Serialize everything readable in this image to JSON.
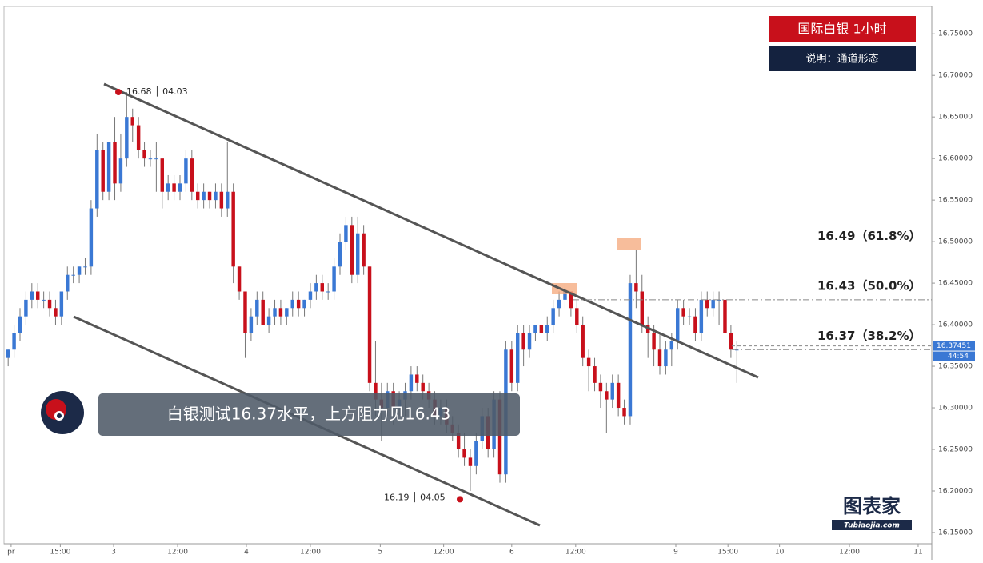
{
  "chart_data": {
    "type": "candlestick",
    "title": "国际白银  1小时",
    "subtitle": "说明：通道形态",
    "headline": "白银测试16.37水平，上方阻力见16.43",
    "logo": {
      "name": "图表家",
      "site": "Tubiaojia.com"
    },
    "up_color": "#3a78d4",
    "down_color": "#c8101b",
    "ylim": [
      16.1365,
      16.781
    ],
    "xlim": [
      -0.7,
      155.9
    ],
    "yticks": [
      {
        "value": 16.15,
        "label": "16.15000"
      },
      {
        "value": 16.2,
        "label": "16.20000"
      },
      {
        "value": 16.25,
        "label": "16.25000"
      },
      {
        "value": 16.3,
        "label": "16.30000"
      },
      {
        "value": 16.35,
        "label": "16.35000"
      },
      {
        "value": 16.4,
        "label": "16.40000"
      },
      {
        "value": 16.45,
        "label": "16.45000"
      },
      {
        "value": 16.5,
        "label": "16.50000"
      },
      {
        "value": 16.55,
        "label": "16.55000"
      },
      {
        "value": 16.6,
        "label": "16.60000"
      },
      {
        "value": 16.65,
        "label": "16.65000"
      },
      {
        "value": 16.7,
        "label": "16.70000"
      },
      {
        "value": 16.75,
        "label": "16.75000"
      }
    ],
    "xticks": [
      {
        "value": 0.5,
        "label": "pr"
      },
      {
        "value": 8.8,
        "label": "15:00"
      },
      {
        "value": 17.8,
        "label": "3"
      },
      {
        "value": 28.6,
        "label": "12:00"
      },
      {
        "value": 40.2,
        "label": "4"
      },
      {
        "value": 51,
        "label": "12:00"
      },
      {
        "value": 62.8,
        "label": "5"
      },
      {
        "value": 73.5,
        "label": "12:00"
      },
      {
        "value": 85,
        "label": "6"
      },
      {
        "value": 95.8,
        "label": "12:00"
      },
      {
        "value": 112.7,
        "label": "9"
      },
      {
        "value": 121.5,
        "label": "15:00"
      },
      {
        "value": 130.2,
        "label": "10"
      },
      {
        "value": 142,
        "label": "12:00"
      },
      {
        "value": 153.6,
        "label": "11"
      }
    ],
    "ohlc": [
      [
        16.36,
        16.37,
        16.35,
        16.37
      ],
      [
        16.37,
        16.4,
        16.36,
        16.39
      ],
      [
        16.39,
        16.42,
        16.38,
        16.41
      ],
      [
        16.41,
        16.44,
        16.4,
        16.43
      ],
      [
        16.43,
        16.45,
        16.42,
        16.44
      ],
      [
        16.44,
        16.45,
        16.42,
        16.43
      ],
      [
        16.43,
        16.44,
        16.42,
        16.43
      ],
      [
        16.43,
        16.44,
        16.41,
        16.42
      ],
      [
        16.42,
        16.43,
        16.4,
        16.41
      ],
      [
        16.41,
        16.44,
        16.4,
        16.44
      ],
      [
        16.44,
        16.47,
        16.43,
        16.46
      ],
      [
        16.46,
        16.47,
        16.45,
        16.46
      ],
      [
        16.46,
        16.47,
        16.45,
        16.47
      ],
      [
        16.47,
        16.48,
        16.46,
        16.47
      ],
      [
        16.47,
        16.55,
        16.46,
        16.54
      ],
      [
        16.54,
        16.63,
        16.53,
        16.61
      ],
      [
        16.61,
        16.62,
        16.55,
        16.56
      ],
      [
        16.56,
        16.62,
        16.55,
        16.62
      ],
      [
        16.62,
        16.65,
        16.55,
        16.57
      ],
      [
        16.57,
        16.63,
        16.56,
        16.6
      ],
      [
        16.6,
        16.68,
        16.59,
        16.65
      ],
      [
        16.65,
        16.66,
        16.62,
        16.64
      ],
      [
        16.64,
        16.65,
        16.6,
        16.61
      ],
      [
        16.61,
        16.62,
        16.59,
        16.6
      ],
      [
        16.6,
        16.61,
        16.59,
        16.6
      ],
      [
        16.6,
        16.62,
        16.56,
        16.6
      ],
      [
        16.6,
        16.6,
        16.54,
        16.56
      ],
      [
        16.56,
        16.58,
        16.55,
        16.57
      ],
      [
        16.57,
        16.58,
        16.55,
        16.56
      ],
      [
        16.56,
        16.58,
        16.55,
        16.57
      ],
      [
        16.57,
        16.61,
        16.56,
        16.6
      ],
      [
        16.6,
        16.61,
        16.55,
        16.56
      ],
      [
        16.56,
        16.57,
        16.54,
        16.55
      ],
      [
        16.55,
        16.57,
        16.54,
        16.56
      ],
      [
        16.56,
        16.56,
        16.54,
        16.55
      ],
      [
        16.55,
        16.57,
        16.54,
        16.56
      ],
      [
        16.56,
        16.57,
        16.53,
        16.54
      ],
      [
        16.54,
        16.62,
        16.53,
        16.56
      ],
      [
        16.56,
        16.57,
        16.45,
        16.47
      ],
      [
        16.47,
        16.47,
        16.43,
        16.44
      ],
      [
        16.44,
        16.44,
        16.36,
        16.39
      ],
      [
        16.39,
        16.42,
        16.38,
        16.41
      ],
      [
        16.41,
        16.44,
        16.4,
        16.43
      ],
      [
        16.43,
        16.44,
        16.4,
        16.4
      ],
      [
        16.4,
        16.42,
        16.39,
        16.41
      ],
      [
        16.41,
        16.43,
        16.4,
        16.42
      ],
      [
        16.42,
        16.43,
        16.4,
        16.41
      ],
      [
        16.41,
        16.42,
        16.4,
        16.42
      ],
      [
        16.42,
        16.44,
        16.41,
        16.43
      ],
      [
        16.43,
        16.44,
        16.41,
        16.42
      ],
      [
        16.42,
        16.43,
        16.41,
        16.43
      ],
      [
        16.43,
        16.45,
        16.42,
        16.44
      ],
      [
        16.44,
        16.46,
        16.43,
        16.45
      ],
      [
        16.45,
        16.46,
        16.43,
        16.44
      ],
      [
        16.44,
        16.45,
        16.43,
        16.44
      ],
      [
        16.44,
        16.48,
        16.43,
        16.47
      ],
      [
        16.47,
        16.51,
        16.46,
        16.5
      ],
      [
        16.5,
        16.53,
        16.49,
        16.52
      ],
      [
        16.52,
        16.53,
        16.45,
        16.46
      ],
      [
        16.46,
        16.53,
        16.45,
        16.51
      ],
      [
        16.51,
        16.52,
        16.46,
        16.47
      ],
      [
        16.47,
        16.47,
        16.32,
        16.33
      ],
      [
        16.33,
        16.38,
        16.29,
        16.31
      ],
      [
        16.31,
        16.33,
        16.26,
        16.3
      ],
      [
        16.3,
        16.33,
        16.29,
        16.32
      ],
      [
        16.32,
        16.33,
        16.28,
        16.3
      ],
      [
        16.3,
        16.32,
        16.29,
        16.31
      ],
      [
        16.31,
        16.33,
        16.29,
        16.32
      ],
      [
        16.32,
        16.35,
        16.31,
        16.34
      ],
      [
        16.34,
        16.35,
        16.32,
        16.33
      ],
      [
        16.33,
        16.34,
        16.31,
        16.32
      ],
      [
        16.32,
        16.33,
        16.3,
        16.31
      ],
      [
        16.31,
        16.32,
        16.28,
        16.29
      ],
      [
        16.29,
        16.31,
        16.28,
        16.3
      ],
      [
        16.3,
        16.31,
        16.27,
        16.28
      ],
      [
        16.28,
        16.29,
        16.26,
        16.27
      ],
      [
        16.27,
        16.28,
        16.24,
        16.25
      ],
      [
        16.25,
        16.27,
        16.23,
        16.24
      ],
      [
        16.24,
        16.25,
        16.2,
        16.23
      ],
      [
        16.23,
        16.27,
        16.22,
        16.26
      ],
      [
        16.26,
        16.3,
        16.25,
        16.29
      ],
      [
        16.29,
        16.3,
        16.24,
        16.25
      ],
      [
        16.25,
        16.32,
        16.24,
        16.31
      ],
      [
        16.31,
        16.32,
        16.21,
        16.22
      ],
      [
        16.22,
        16.38,
        16.21,
        16.37
      ],
      [
        16.37,
        16.38,
        16.32,
        16.33
      ],
      [
        16.33,
        16.4,
        16.32,
        16.39
      ],
      [
        16.39,
        16.4,
        16.35,
        16.37
      ],
      [
        16.37,
        16.4,
        16.36,
        16.39
      ],
      [
        16.39,
        16.4,
        16.38,
        16.4
      ],
      [
        16.4,
        16.4,
        16.39,
        16.39
      ],
      [
        16.39,
        16.41,
        16.38,
        16.4
      ],
      [
        16.4,
        16.43,
        16.39,
        16.42
      ],
      [
        16.42,
        16.44,
        16.41,
        16.43
      ],
      [
        16.43,
        16.45,
        16.42,
        16.44
      ],
      [
        16.44,
        16.44,
        16.41,
        16.42
      ],
      [
        16.42,
        16.43,
        16.39,
        16.4
      ],
      [
        16.4,
        16.41,
        16.35,
        16.36
      ],
      [
        16.36,
        16.37,
        16.32,
        16.35
      ],
      [
        16.35,
        16.36,
        16.32,
        16.33
      ],
      [
        16.33,
        16.34,
        16.3,
        16.32
      ],
      [
        16.32,
        16.33,
        16.27,
        16.31
      ],
      [
        16.31,
        16.34,
        16.3,
        16.33
      ],
      [
        16.33,
        16.34,
        16.29,
        16.3
      ],
      [
        16.3,
        16.31,
        16.28,
        16.29
      ],
      [
        16.29,
        16.46,
        16.28,
        16.45
      ],
      [
        16.45,
        16.49,
        16.42,
        16.44
      ],
      [
        16.44,
        16.46,
        16.39,
        16.4
      ],
      [
        16.4,
        16.41,
        16.36,
        16.39
      ],
      [
        16.39,
        16.4,
        16.35,
        16.37
      ],
      [
        16.37,
        16.39,
        16.34,
        16.35
      ],
      [
        16.35,
        16.38,
        16.34,
        16.37
      ],
      [
        16.37,
        16.39,
        16.35,
        16.38
      ],
      [
        16.38,
        16.43,
        16.37,
        16.42
      ],
      [
        16.42,
        16.43,
        16.4,
        16.41
      ],
      [
        16.41,
        16.42,
        16.4,
        16.41
      ],
      [
        16.41,
        16.42,
        16.38,
        16.39
      ],
      [
        16.39,
        16.44,
        16.38,
        16.43
      ],
      [
        16.43,
        16.44,
        16.41,
        16.42
      ],
      [
        16.42,
        16.44,
        16.41,
        16.43
      ],
      [
        16.43,
        16.44,
        16.4,
        16.43
      ],
      [
        16.43,
        16.43,
        16.39,
        16.39
      ],
      [
        16.39,
        16.4,
        16.36,
        16.37
      ],
      [
        16.37,
        16.38,
        16.33,
        16.37
      ]
    ],
    "annotations": [
      {
        "value": 16.68,
        "label": "16.68 │ 04.03"
      },
      {
        "value": 16.19,
        "label": "16.19 │ 04.05"
      }
    ],
    "levels": [
      {
        "value": 16.49,
        "label": "16.49（61.8%）"
      },
      {
        "value": 16.43,
        "label": "16.43（50.0%）"
      },
      {
        "value": 16.37,
        "label": "16.37（38.2%）"
      }
    ],
    "last_price": 16.37451,
    "countdown": "44:54"
  }
}
